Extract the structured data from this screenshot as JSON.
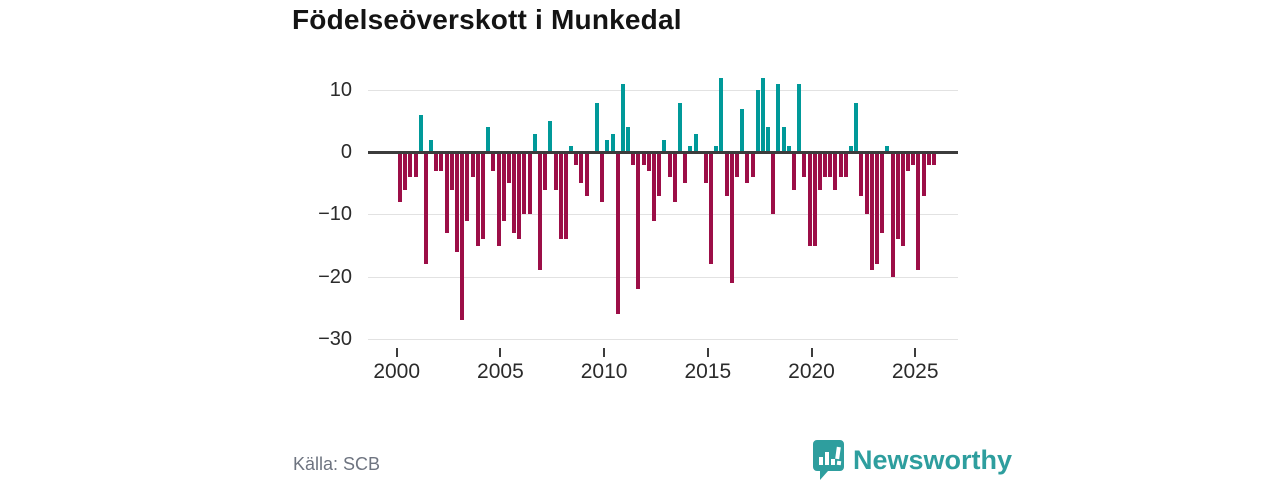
{
  "chart_data": {
    "type": "bar",
    "title": "Födelseöverskott i Munkedal",
    "source": "Källa: SCB",
    "start_year": 2000,
    "periods_per_year": 4,
    "values": [
      -8,
      -6,
      -4,
      -4,
      6,
      -18,
      2,
      -3,
      -3,
      -13,
      -6,
      -16,
      -27,
      -11,
      -4,
      -15,
      -14,
      4,
      -3,
      -15,
      -11,
      -5,
      -13,
      -14,
      -10,
      -10,
      3,
      -19,
      -6,
      5,
      -6,
      -14,
      -14,
      1,
      -2,
      -5,
      -7,
      0,
      8,
      -8,
      2,
      3,
      -26,
      11,
      4,
      -2,
      -22,
      -2,
      -3,
      -11,
      -7,
      2,
      -4,
      -8,
      8,
      -5,
      1,
      3,
      0,
      -5,
      -18,
      1,
      12,
      -7,
      -21,
      -4,
      7,
      -5,
      -4,
      10,
      12,
      4,
      -10,
      11,
      4,
      1,
      -6,
      11,
      -4,
      -15,
      -15,
      -6,
      -4,
      -4,
      -6,
      -4,
      -4,
      1,
      8,
      -7,
      -10,
      -19,
      -18,
      -13,
      1,
      -20,
      -14,
      -15,
      -3,
      -2,
      -19,
      -7,
      -2,
      -2
    ],
    "yticks": [
      10,
      0,
      -10,
      -20,
      -30
    ],
    "ylim": [
      -30,
      12
    ],
    "xticks": [
      2000,
      2005,
      2010,
      2015,
      2020,
      2025
    ],
    "grid": "horizontal only",
    "legend": "none",
    "colors": {
      "positive": "#009999",
      "negative": "#9c0e47"
    }
  },
  "branding": {
    "logo_text": "Newsworthy",
    "logo_color": "#2e9e9e"
  }
}
